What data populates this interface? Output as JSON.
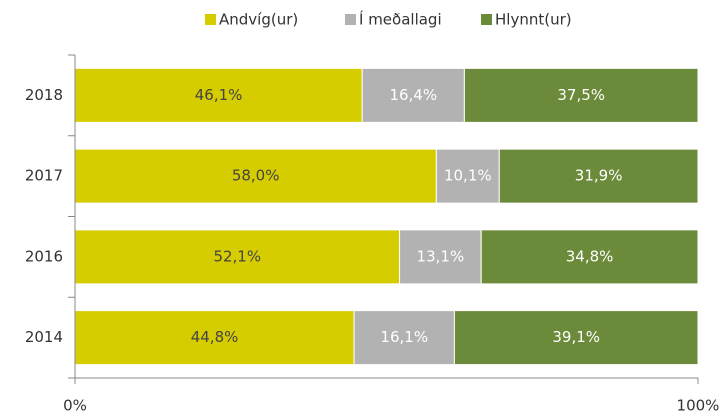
{
  "chart_data": {
    "type": "stacked-bar-horizontal",
    "categories": [
      "2018",
      "2017",
      "2016",
      "2014"
    ],
    "series": [
      {
        "name": "Andvíg(ur)",
        "color": "#d6cd00",
        "values": [
          46.1,
          58.0,
          52.1,
          44.8
        ],
        "value_labels": [
          "46,1%",
          "58,0%",
          "52,1%",
          "44,8%"
        ]
      },
      {
        "name": "Í meðallagi",
        "color": "#b2b2b2",
        "values": [
          16.4,
          10.1,
          13.1,
          16.1
        ],
        "value_labels": [
          "16,4%",
          "10,1%",
          "13,1%",
          "16,1%"
        ]
      },
      {
        "name": "Hlynnt(ur)",
        "color": "#6b8a3a",
        "values": [
          37.5,
          31.9,
          34.8,
          39.1
        ],
        "value_labels": [
          "37,5%",
          "31,9%",
          "34,8%",
          "39,1%"
        ]
      }
    ],
    "xlim": [
      0,
      100
    ],
    "xticks": [
      {
        "value": 0,
        "label": "0%"
      },
      {
        "value": 100,
        "label": "100%"
      }
    ],
    "legend": "top"
  }
}
